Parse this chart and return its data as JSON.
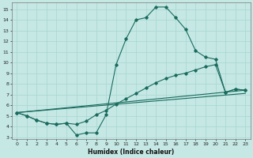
{
  "xlabel": "Humidex (Indice chaleur)",
  "xlim": [
    -0.5,
    23.5
  ],
  "ylim": [
    2.8,
    15.6
  ],
  "yticks": [
    3,
    4,
    5,
    6,
    7,
    8,
    9,
    10,
    11,
    12,
    13,
    14,
    15
  ],
  "xticks": [
    0,
    1,
    2,
    3,
    4,
    5,
    6,
    7,
    8,
    9,
    10,
    11,
    12,
    13,
    14,
    15,
    16,
    17,
    18,
    19,
    20,
    21,
    22,
    23
  ],
  "bg_color": "#c5e8e4",
  "line_color": "#1a6b5e",
  "grid_color": "#a8d5d0",
  "line1_x": [
    0,
    1,
    2,
    3,
    4,
    5,
    6,
    7,
    8,
    9,
    10,
    11,
    12,
    13,
    14,
    15,
    16,
    17,
    18,
    19,
    20,
    21,
    22,
    23
  ],
  "line1_y": [
    5.3,
    5.0,
    4.6,
    4.3,
    4.2,
    4.3,
    3.2,
    3.4,
    3.4,
    5.1,
    9.8,
    12.2,
    14.0,
    14.2,
    15.2,
    15.2,
    14.2,
    13.1,
    11.1,
    10.5,
    10.3,
    7.2,
    7.5,
    7.4
  ],
  "line2_x": [
    0,
    1,
    2,
    3,
    4,
    5,
    6,
    7,
    8,
    9,
    10,
    11,
    12,
    13,
    14,
    15,
    16,
    17,
    18,
    19,
    20,
    21,
    22,
    23
  ],
  "line2_y": [
    5.3,
    5.0,
    4.6,
    4.3,
    4.2,
    4.3,
    4.2,
    4.5,
    5.1,
    5.5,
    6.1,
    6.6,
    7.1,
    7.6,
    8.1,
    8.5,
    8.8,
    9.0,
    9.3,
    9.6,
    9.8,
    7.2,
    7.5,
    7.4
  ],
  "line3_x": [
    0,
    23
  ],
  "line3_y": [
    5.3,
    7.4
  ],
  "line4_x": [
    0,
    23
  ],
  "line4_y": [
    5.3,
    7.1
  ]
}
